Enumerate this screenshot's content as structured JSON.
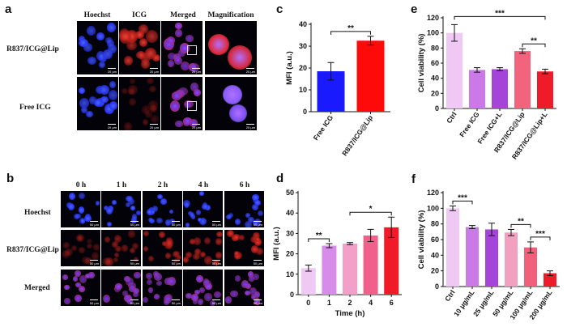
{
  "panel_labels": {
    "a": "a",
    "b": "b",
    "c": "c",
    "d": "d",
    "e": "e",
    "f": "f"
  },
  "panel_a": {
    "columns": [
      "Hoechst",
      "ICG",
      "Merged",
      "Magnification"
    ],
    "rows": [
      "R837/ICG@Lip",
      "Free ICG"
    ],
    "scale_bar": "20 μm",
    "colors": {
      "hoechst": "#2a3cff",
      "icg": "#e0241c",
      "merged": "#b03cd8"
    }
  },
  "panel_b": {
    "columns": [
      "0 h",
      "1 h",
      "2 h",
      "4 h",
      "6 h"
    ],
    "rows": [
      "Hoechst",
      "R837/ICG@Lip",
      "Merged"
    ],
    "scale_bar": "50 μm"
  },
  "chart_data": [
    {
      "id": "c",
      "type": "bar",
      "categories": [
        "Free ICG",
        "R837/ICG@Lip"
      ],
      "values": [
        18.5,
        32.5
      ],
      "errors": [
        4,
        2
      ],
      "colors": [
        "#1a1aff",
        "#ff0a0a"
      ],
      "ylabel": "MFI (a.u.)",
      "ylim": [
        0,
        40
      ],
      "yticks": [
        "0",
        "10",
        "20",
        "30",
        "40"
      ],
      "significance": [
        {
          "pair": [
            0,
            1
          ],
          "label": "**"
        }
      ]
    },
    {
      "id": "e",
      "type": "bar",
      "categories": [
        "Ctrl",
        "Free ICG",
        "Free ICG+L",
        "R837/ICG@Lip",
        "R837/ICG@Lip+L"
      ],
      "values": [
        100,
        51,
        52,
        76,
        49
      ],
      "errors": [
        11,
        3,
        2,
        3,
        3
      ],
      "colors": [
        "#f0c8f4",
        "#cc79e8",
        "#a544d8",
        "#f2637e",
        "#f01b28"
      ],
      "ylabel": "Cell viability (%)",
      "ylim": [
        0,
        120
      ],
      "yticks": [
        "0",
        "20",
        "40",
        "60",
        "80",
        "100",
        "120"
      ],
      "significance": [
        {
          "pair": [
            0,
            4
          ],
          "label": "***"
        },
        {
          "pair": [
            3,
            4
          ],
          "label": "**"
        }
      ]
    },
    {
      "id": "d",
      "type": "bar",
      "categories": [
        "0",
        "1",
        "2",
        "4",
        "6"
      ],
      "values": [
        13,
        24,
        25,
        29,
        33
      ],
      "errors": [
        1.5,
        1,
        0.5,
        3,
        5
      ],
      "colors": [
        "#f0c8f4",
        "#d68ce8",
        "#f2a0c8",
        "#f0608a",
        "#f01b28"
      ],
      "xlabel": "Time (h)",
      "ylabel": "MFI (a.u.)",
      "ylim": [
        0,
        50
      ],
      "yticks": [
        "0",
        "10",
        "20",
        "30",
        "40",
        "50"
      ],
      "significance": [
        {
          "pair": [
            0,
            1
          ],
          "label": "**"
        },
        {
          "pair": [
            2,
            4
          ],
          "label": "*"
        }
      ]
    },
    {
      "id": "f",
      "type": "bar",
      "categories": [
        "Ctrl",
        "10 μg/mL",
        "25 μg/mL",
        "50 μg/mL",
        "100 μg/mL",
        "200 μg/mL"
      ],
      "values": [
        100,
        76,
        73,
        69,
        50,
        17
      ],
      "errors": [
        3,
        2,
        8,
        4,
        7,
        3
      ],
      "colors": [
        "#f0c8f4",
        "#cc79e8",
        "#a544d8",
        "#f2a0c0",
        "#f0607a",
        "#f01b28"
      ],
      "ylabel": "Cell viability (%)",
      "ylim": [
        0,
        120
      ],
      "yticks": [
        "0",
        "20",
        "40",
        "60",
        "80",
        "100",
        "120"
      ],
      "significance": [
        {
          "pair": [
            0,
            1
          ],
          "label": "***"
        },
        {
          "pair": [
            3,
            4
          ],
          "label": "**"
        },
        {
          "pair": [
            4,
            5
          ],
          "label": "***"
        }
      ]
    }
  ]
}
